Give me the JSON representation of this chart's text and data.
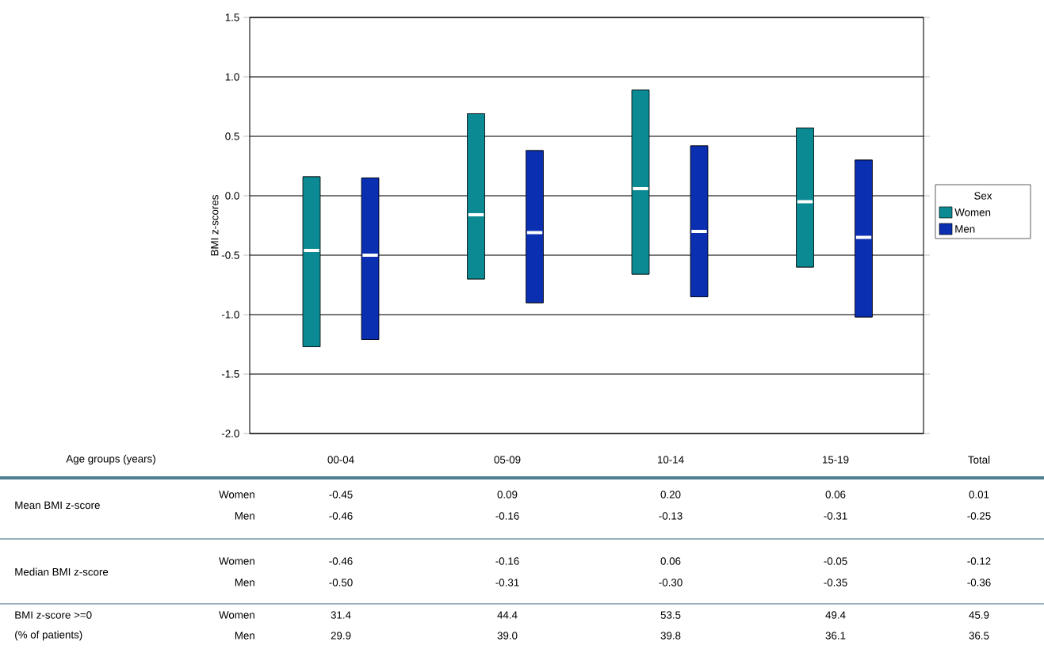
{
  "chart_data": [
    {
      "type": "box",
      "ylabel": "BMI z-scores",
      "categories": [
        null,
        null,
        null,
        null
      ],
      "tick_labels": "y",
      "series": [
        {
          "name": "Women",
          "color": "#0b8a94",
          "boxes": [
            {
              "low": -1.27,
              "q1": -1.27,
              "median": -0.46,
              "q3": 0.16,
              "high": 0.16
            },
            {
              "low": -0.7,
              "q1": -0.7,
              "median": -0.16,
              "q3": 0.69,
              "high": 0.69
            },
            {
              "low": -0.66,
              "q1": -0.66,
              "median": 0.06,
              "q3": 0.89,
              "high": 0.89
            },
            {
              "low": -0.6,
              "q1": -0.6,
              "median": -0.05,
              "q3": 0.57,
              "high": 0.57
            }
          ]
        },
        {
          "name": "Men",
          "color": "#0a2fb0",
          "boxes": [
            {
              "low": -1.21,
              "q1": -1.21,
              "median": -0.5,
              "q3": 0.15,
              "high": 0.15
            },
            {
              "low": -0.9,
              "q1": -0.9,
              "median": -0.31,
              "q3": 0.38,
              "high": 0.38
            },
            {
              "low": -0.85,
              "q1": -0.85,
              "median": -0.3,
              "q3": 0.42,
              "high": 0.42
            },
            {
              "low": -1.02,
              "q1": -1.02,
              "median": -0.35,
              "q3": 0.3,
              "high": 0.3
            }
          ]
        }
      ],
      "ylim": [
        -2.0,
        1.5
      ],
      "yticks": [
        {
          "value": -2.0,
          "label": "-2.0"
        },
        {
          "value": -1.5,
          "label": "-1.5"
        },
        {
          "value": -1.0,
          "label": "-1.0"
        },
        {
          "value": -0.5,
          "label": "-0.5"
        },
        {
          "value": 0.0,
          "label": "0.0"
        },
        {
          "value": 0.5,
          "label": "0.5"
        },
        {
          "value": 1.0,
          "label": "1.0"
        },
        {
          "value": 1.5,
          "label": "1.5"
        }
      ],
      "grid": "y",
      "legend": "right",
      "legend_title": "Sex"
    },
    {
      "type": "other",
      "xlabel": "Age groups (years)",
      "categories": [
        "00-04",
        "05-09",
        "10-14",
        "15-19",
        "Total"
      ],
      "series": [
        {
          "name": "Women",
          "values": [
            -0.45,
            0.09,
            0.2,
            0.06,
            0.01
          ],
          "value_labels": [
            "-0.45",
            "0.09",
            "0.20",
            "0.06",
            "0.01"
          ]
        },
        {
          "name": "Men",
          "values": [
            -0.46,
            -0.16,
            -0.13,
            -0.31,
            -0.25
          ],
          "value_labels": [
            "-0.46",
            "-0.16",
            "-0.13",
            "-0.31",
            "-0.25"
          ]
        },
        {
          "name": "Women",
          "values": [
            -0.46,
            -0.16,
            0.06,
            -0.05,
            -0.12
          ],
          "value_labels": [
            "-0.46",
            "-0.16",
            "0.06",
            "-0.05",
            "-0.12"
          ]
        },
        {
          "name": "Men",
          "values": [
            -0.5,
            -0.31,
            -0.3,
            -0.35,
            -0.36
          ],
          "value_labels": [
            "-0.50",
            "-0.31",
            "-0.30",
            "-0.35",
            "-0.36"
          ]
        },
        {
          "name": "Women",
          "values": [
            31.4,
            44.4,
            53.5,
            49.4,
            45.9
          ],
          "value_labels": [
            "31.4",
            "44.4",
            "53.5",
            "49.4",
            "45.9"
          ]
        },
        {
          "name": "Men",
          "values": [
            29.9,
            39.0,
            39.8,
            36.1,
            36.5
          ],
          "value_labels": [
            "29.9",
            "39.0",
            "39.8",
            "36.1",
            "36.5"
          ]
        }
      ],
      "data_labels": true,
      "annotations": [
        "Mean BMI z-score",
        "Median BMI z-score",
        "BMI z-score >=0",
        "(% of patients)"
      ]
    }
  ]
}
